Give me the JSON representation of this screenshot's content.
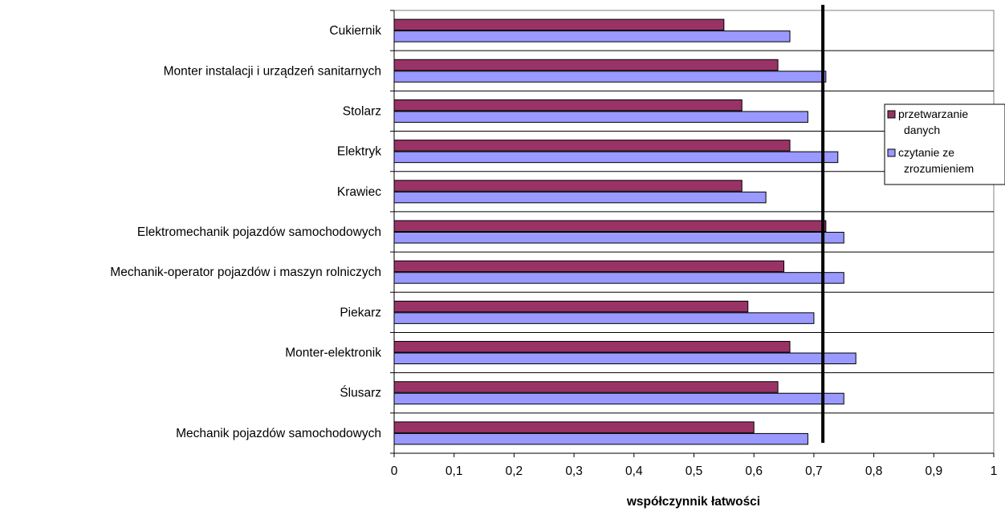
{
  "chart_data": {
    "type": "bar",
    "orientation": "horizontal",
    "categories": [
      "Cukiernik",
      "Monter instalacji i urządzeń sanitarnych",
      "Stolarz",
      "Elektryk",
      "Krawiec",
      "Elektromechanik pojazdów samochodowych",
      "Mechanik-operator pojazdów i maszyn rolniczych",
      "Piekarz",
      "Monter-elektronik",
      "Ślusarz",
      "Mechanik pojazdów samochodowych"
    ],
    "series": [
      {
        "name": "przetwarzanie danych",
        "legend_lines": [
          "przetwarzanie",
          "danych"
        ],
        "color": "#993366",
        "values": [
          0.55,
          0.64,
          0.58,
          0.66,
          0.58,
          0.72,
          0.65,
          0.59,
          0.66,
          0.64,
          0.6
        ]
      },
      {
        "name": "czytanie ze zrozumieniem",
        "legend_lines": [
          "czytanie ze",
          "zrozumieniem"
        ],
        "color": "#9999ff",
        "values": [
          0.66,
          0.72,
          0.69,
          0.74,
          0.62,
          0.75,
          0.75,
          0.7,
          0.77,
          0.75,
          0.69
        ]
      }
    ],
    "xlabel": "współczynnik łatwości",
    "ylabel": "",
    "xlim": [
      0,
      1
    ],
    "xticks": [
      "0",
      "0,1",
      "0,2",
      "0,3",
      "0,4",
      "0,5",
      "0,6",
      "0,7",
      "0,8",
      "0,9",
      "1"
    ],
    "reference_line": 0.715,
    "grid": "horizontal",
    "legend_position": "right"
  }
}
